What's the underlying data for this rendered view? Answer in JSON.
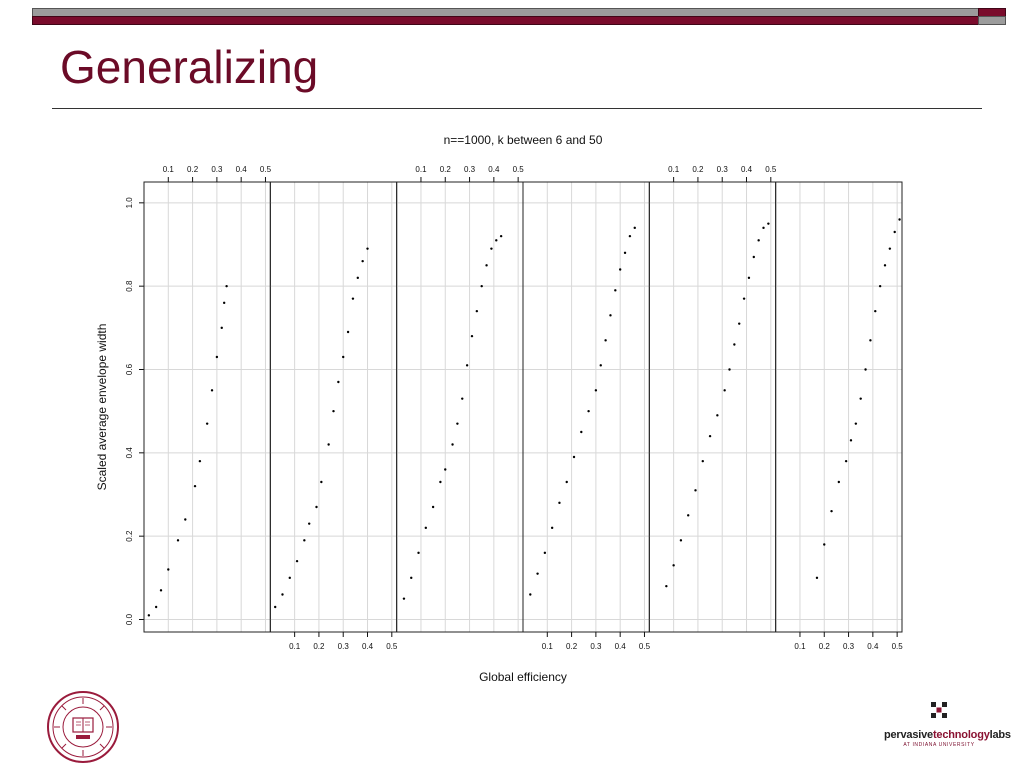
{
  "slide": {
    "title": "Generalizing",
    "accent_color": "#6b0b27"
  },
  "logo": {
    "name_part1": "pervasive",
    "name_part2": "technology",
    "name_part3": "labs",
    "subtitle": "AT INDIANA UNIVERSITY"
  },
  "chart_data": {
    "type": "scatter",
    "title": "n==1000, k between 6 and 50",
    "xlabel": "Global efficiency",
    "ylabel": "Scaled average envelope width",
    "xlim": [
      0.0,
      0.52
    ],
    "ylim": [
      -0.03,
      1.05
    ],
    "x_ticks": [
      0.1,
      0.2,
      0.3,
      0.4,
      0.5
    ],
    "x_tick_labels": [
      "0.1",
      "0.2",
      "0.3",
      "0.4",
      "0.5"
    ],
    "y_ticks": [
      0.0,
      0.2,
      0.4,
      0.6,
      0.8,
      1.0
    ],
    "y_tick_labels": [
      "0.0",
      "0.2",
      "0.4",
      "0.6",
      "0.8",
      "1.0"
    ],
    "grid": true,
    "panels": [
      {
        "x": [
          0.02,
          0.05,
          0.07,
          0.1,
          0.14,
          0.17,
          0.21,
          0.23,
          0.26,
          0.28,
          0.3,
          0.32,
          0.33,
          0.34
        ],
        "y": [
          0.01,
          0.03,
          0.07,
          0.12,
          0.19,
          0.24,
          0.32,
          0.38,
          0.47,
          0.55,
          0.63,
          0.7,
          0.76,
          0.8
        ]
      },
      {
        "x": [
          0.02,
          0.05,
          0.08,
          0.11,
          0.14,
          0.16,
          0.19,
          0.21,
          0.24,
          0.26,
          0.28,
          0.3,
          0.32,
          0.34,
          0.36,
          0.38,
          0.4
        ],
        "y": [
          0.03,
          0.06,
          0.1,
          0.14,
          0.19,
          0.23,
          0.27,
          0.33,
          0.42,
          0.5,
          0.57,
          0.63,
          0.69,
          0.77,
          0.82,
          0.86,
          0.89
        ]
      },
      {
        "x": [
          0.03,
          0.06,
          0.09,
          0.12,
          0.15,
          0.18,
          0.2,
          0.23,
          0.25,
          0.27,
          0.29,
          0.31,
          0.33,
          0.35,
          0.37,
          0.39,
          0.41,
          0.43
        ],
        "y": [
          0.05,
          0.1,
          0.16,
          0.22,
          0.27,
          0.33,
          0.36,
          0.42,
          0.47,
          0.53,
          0.61,
          0.68,
          0.74,
          0.8,
          0.85,
          0.89,
          0.91,
          0.92
        ]
      },
      {
        "x": [
          0.03,
          0.06,
          0.09,
          0.12,
          0.15,
          0.18,
          0.21,
          0.24,
          0.27,
          0.3,
          0.32,
          0.34,
          0.36,
          0.38,
          0.4,
          0.42,
          0.44,
          0.46
        ],
        "y": [
          0.06,
          0.11,
          0.16,
          0.22,
          0.28,
          0.33,
          0.39,
          0.45,
          0.5,
          0.55,
          0.61,
          0.67,
          0.73,
          0.79,
          0.84,
          0.88,
          0.92,
          0.94
        ]
      },
      {
        "x": [
          0.07,
          0.1,
          0.13,
          0.16,
          0.19,
          0.22,
          0.25,
          0.28,
          0.31,
          0.33,
          0.35,
          0.37,
          0.39,
          0.41,
          0.43,
          0.45,
          0.47,
          0.49
        ],
        "y": [
          0.08,
          0.13,
          0.19,
          0.25,
          0.31,
          0.38,
          0.44,
          0.49,
          0.55,
          0.6,
          0.66,
          0.71,
          0.77,
          0.82,
          0.87,
          0.91,
          0.94,
          0.95
        ]
      },
      {
        "x": [
          0.17,
          0.2,
          0.23,
          0.26,
          0.29,
          0.31,
          0.33,
          0.35,
          0.37,
          0.39,
          0.41,
          0.43,
          0.45,
          0.47,
          0.49,
          0.51
        ],
        "y": [
          0.1,
          0.18,
          0.26,
          0.33,
          0.38,
          0.43,
          0.47,
          0.53,
          0.6,
          0.67,
          0.74,
          0.8,
          0.85,
          0.89,
          0.93,
          0.96
        ]
      }
    ]
  }
}
